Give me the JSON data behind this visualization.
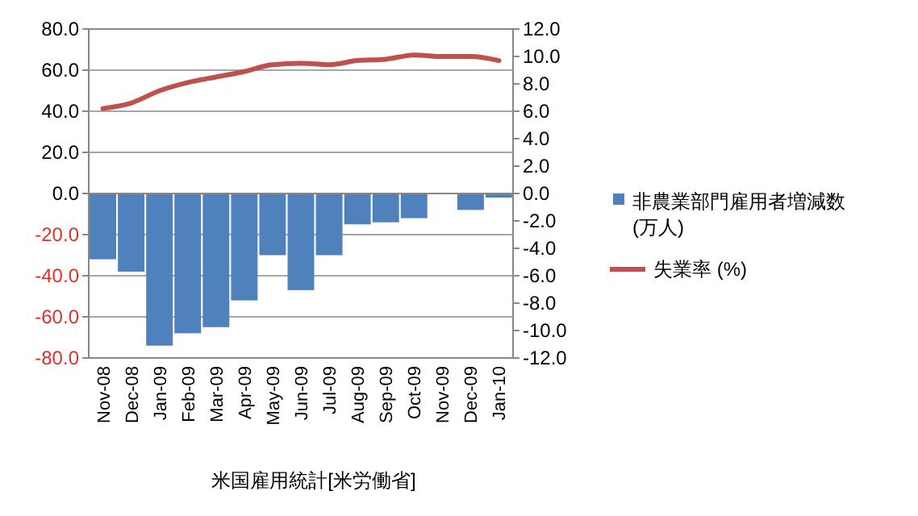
{
  "chart_data": {
    "type": "bar",
    "xlabel": "米国雇用統計[米労働省]",
    "categories": [
      "Nov-08",
      "Dec-08",
      "Jan-09",
      "Feb-09",
      "Mar-09",
      "Apr-09",
      "May-09",
      "Jun-09",
      "Jul-09",
      "Aug-09",
      "Sep-09",
      "Oct-09",
      "Nov-09",
      "Dec-09",
      "Jan-10"
    ],
    "series": [
      {
        "name": "非農業部門雇用者増減数(万人)",
        "color": "#4f81bd",
        "values": [
          -32,
          -38,
          -74,
          -68,
          -65,
          -52,
          -30,
          -47,
          -30,
          -15,
          -14,
          -12,
          0,
          -8,
          -2
        ]
      },
      {
        "name": "失業率 (%)",
        "type": "line",
        "axis": "y2",
        "color": "#c0504d",
        "values": [
          6.2,
          6.6,
          7.5,
          8.1,
          8.5,
          8.9,
          9.4,
          9.5,
          9.4,
          9.7,
          9.8,
          10.1,
          10.0,
          10.0,
          9.7
        ]
      }
    ],
    "ylim": [
      -80,
      80
    ],
    "yticks": [
      {
        "value": -80,
        "label": "-80.0"
      },
      {
        "value": -60,
        "label": "-60.0"
      },
      {
        "value": -40,
        "label": "-40.0"
      },
      {
        "value": -20,
        "label": "-20.0"
      },
      {
        "value": 0,
        "label": "0.0"
      },
      {
        "value": 20,
        "label": "20.0"
      },
      {
        "value": 40,
        "label": "40.0"
      },
      {
        "value": 60,
        "label": "60.0"
      },
      {
        "value": 80,
        "label": "80.0"
      }
    ],
    "y2lim": [
      -12,
      12
    ],
    "y2ticks": [
      {
        "value": -12,
        "label": "-12.0"
      },
      {
        "value": -10,
        "label": "-10.0"
      },
      {
        "value": -8,
        "label": "-8.0"
      },
      {
        "value": -6,
        "label": "-6.0"
      },
      {
        "value": -4,
        "label": "-4.0"
      },
      {
        "value": -2,
        "label": "-2.0"
      },
      {
        "value": 0,
        "label": "0.0"
      },
      {
        "value": 2,
        "label": "2.0"
      },
      {
        "value": 4,
        "label": "4.0"
      },
      {
        "value": 6,
        "label": "6.0"
      },
      {
        "value": 8,
        "label": "8.0"
      },
      {
        "value": 10,
        "label": "10.0"
      },
      {
        "value": 12,
        "label": "12.0"
      }
    ],
    "grid": "y",
    "legend": "right"
  }
}
